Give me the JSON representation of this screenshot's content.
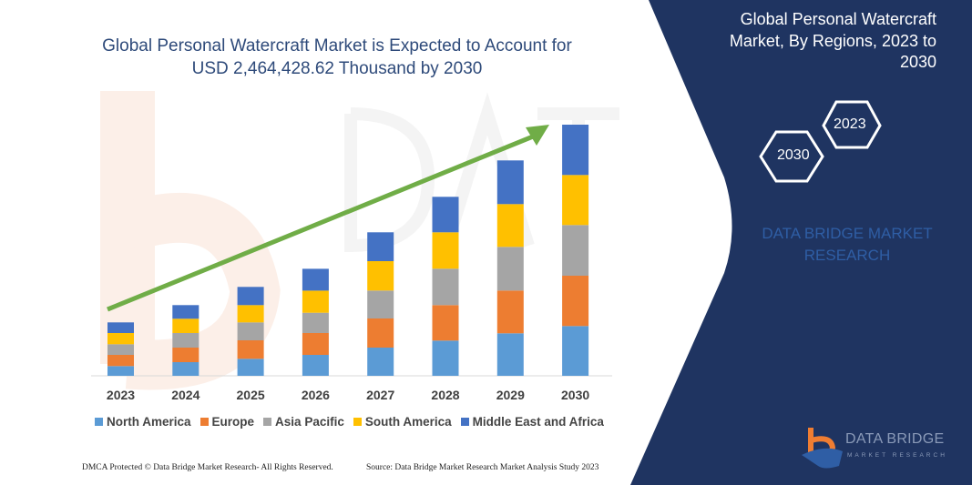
{
  "title": "Global Personal Watercraft Market is Expected to Account for USD 2,464,428.62 Thousand by 2030",
  "side_panel": {
    "title": "Global Personal Watercraft Market, By Regions, 2023 to 2030",
    "hex_start": "2023",
    "hex_end": "2030",
    "brand": "DATA BRIDGE MARKET RESEARCH",
    "logo_text": "DATA BRIDGE",
    "logo_sub": "MARKET RESEARCH",
    "background_color": "#1f3461"
  },
  "footer": {
    "left": "DMCA Protected © Data Bridge Market Research- All Rights Reserved.",
    "right": "Source: Data Bridge Market Research Market Analysis Study 2023"
  },
  "chart_data": {
    "type": "bar",
    "stacked": true,
    "title": "Global Personal Watercraft Market is Expected to Account for USD 2,464,428.62 Thousand by 2030",
    "xlabel": "",
    "ylabel": "",
    "grid": false,
    "legend_position": "bottom",
    "trend_arrow": true,
    "trend_arrow_color": "#70ad47",
    "ylim": [
      0,
      280
    ],
    "categories": [
      "2023",
      "2024",
      "2025",
      "2026",
      "2027",
      "2028",
      "2029",
      "2030"
    ],
    "series": [
      {
        "name": "North America",
        "color": "#5b9bd5",
        "values": [
          10.7,
          15,
          18.7,
          23,
          31,
          38.7,
          46.7,
          54.7
        ]
      },
      {
        "name": "Europe",
        "color": "#ed7d31",
        "values": [
          12.3,
          16,
          20.3,
          24,
          32,
          39,
          47,
          55.3
        ]
      },
      {
        "name": "Asia Pacific",
        "color": "#a5a5a5",
        "values": [
          11.7,
          16,
          19.7,
          22.3,
          30.7,
          40,
          48,
          55.7
        ]
      },
      {
        "name": "South America",
        "color": "#ffc000",
        "values": [
          12.3,
          15.7,
          19,
          24.3,
          32.3,
          40,
          47,
          55
        ]
      },
      {
        "name": "Middle East and Africa",
        "color": "#4472c4",
        "values": [
          11.7,
          15,
          20,
          24,
          31.7,
          39,
          48,
          55.3
        ]
      }
    ]
  }
}
